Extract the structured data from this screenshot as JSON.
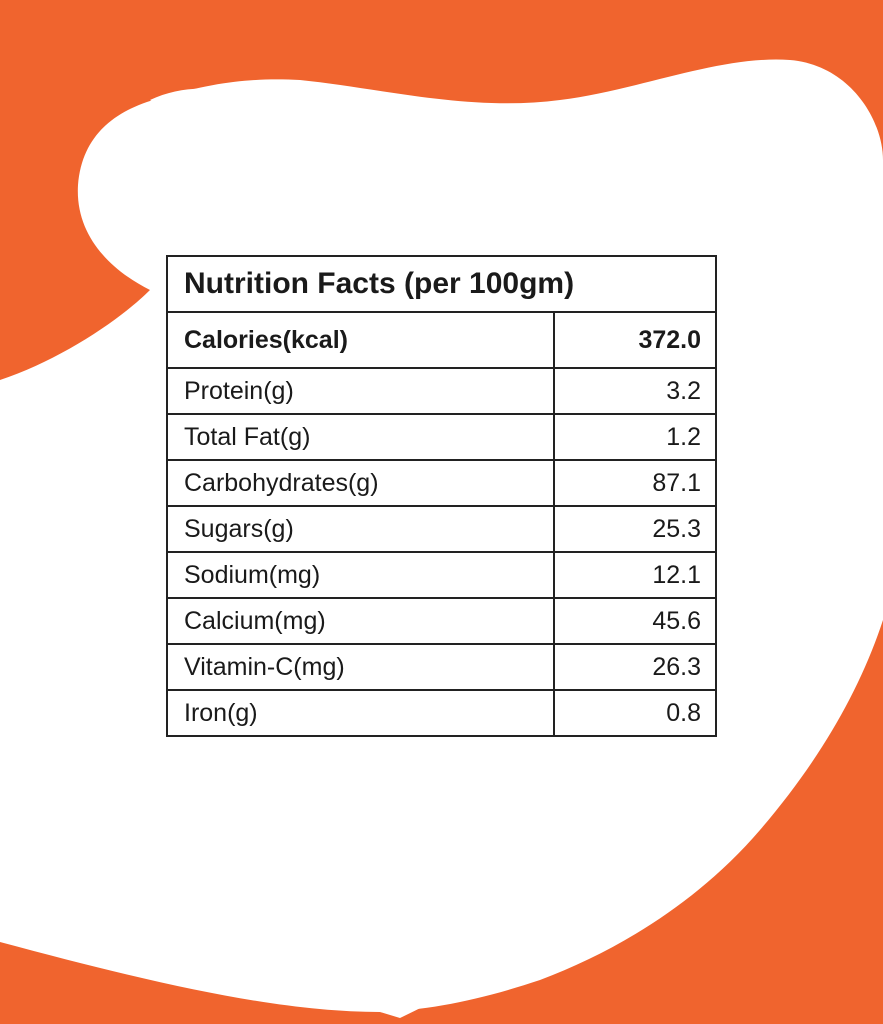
{
  "colors": {
    "accent": "#f0642e",
    "panel": "#ffffff",
    "text": "#1a1a1a",
    "border": "#222222"
  },
  "table": {
    "title": "Nutrition Facts (per 100gm)",
    "calories": {
      "label": "Calories(kcal)",
      "value": "372.0"
    },
    "rows": [
      {
        "label": "Protein(g)",
        "value": "3.2"
      },
      {
        "label": "Total Fat(g)",
        "value": "1.2"
      },
      {
        "label": "Carbohydrates(g)",
        "value": "87.1"
      },
      {
        "label": "Sugars(g)",
        "value": "25.3"
      },
      {
        "label": "Sodium(mg)",
        "value": "12.1"
      },
      {
        "label": "Calcium(mg)",
        "value": "45.6"
      },
      {
        "label": "Vitamin-C(mg)",
        "value": "26.3"
      },
      {
        "label": "Iron(g)",
        "value": "0.8"
      }
    ]
  }
}
